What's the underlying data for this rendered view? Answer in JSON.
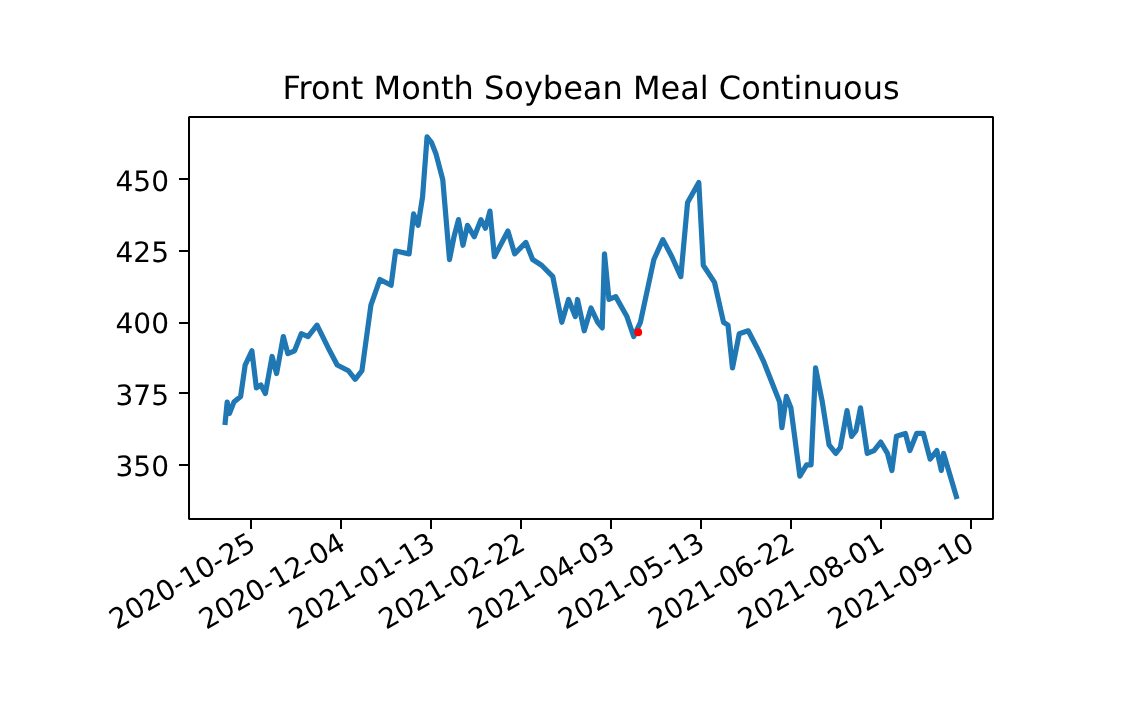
{
  "chart_data": {
    "type": "line",
    "title": "Front Month Soybean Meal Continuous",
    "xlim": [
      "2020-09-27",
      "2021-09-20"
    ],
    "ylim": [
      331,
      472
    ],
    "xticks": [
      "2020-10-25",
      "2020-12-04",
      "2021-01-13",
      "2021-02-22",
      "2021-04-03",
      "2021-05-13",
      "2021-06-22",
      "2021-08-01",
      "2021-09-10"
    ],
    "yticks": [
      350,
      375,
      400,
      425,
      450
    ],
    "grid": false,
    "marker": "none",
    "line_style": "solid",
    "series": [
      {
        "color": "#1f77b4",
        "x": [
          "2020-10-13",
          "2020-10-14",
          "2020-10-15",
          "2020-10-17",
          "2020-10-20",
          "2020-10-22",
          "2020-10-25",
          "2020-10-27",
          "2020-10-29",
          "2020-10-31",
          "2020-11-03",
          "2020-11-05",
          "2020-11-08",
          "2020-11-10",
          "2020-11-13",
          "2020-11-16",
          "2020-11-19",
          "2020-11-23",
          "2020-11-28",
          "2020-12-02",
          "2020-12-07",
          "2020-12-10",
          "2020-12-13",
          "2020-12-17",
          "2020-12-21",
          "2020-12-26",
          "2020-12-28",
          "2021-01-03",
          "2021-01-05",
          "2021-01-07",
          "2021-01-09",
          "2021-01-11",
          "2021-01-13",
          "2021-01-15",
          "2021-01-18",
          "2021-01-21",
          "2021-01-23",
          "2021-01-25",
          "2021-01-27",
          "2021-01-29",
          "2021-02-01",
          "2021-02-04",
          "2021-02-06",
          "2021-02-08",
          "2021-02-10",
          "2021-02-12",
          "2021-02-16",
          "2021-02-19",
          "2021-02-24",
          "2021-02-27",
          "2021-03-03",
          "2021-03-08",
          "2021-03-12",
          "2021-03-15",
          "2021-03-18",
          "2021-03-19",
          "2021-03-22",
          "2021-03-25",
          "2021-03-28",
          "2021-03-30",
          "2021-03-31",
          "2021-04-02",
          "2021-04-05",
          "2021-04-10",
          "2021-04-13",
          "2021-04-16",
          "2021-04-22",
          "2021-04-26",
          "2021-04-30",
          "2021-05-04",
          "2021-05-07",
          "2021-05-12",
          "2021-05-14",
          "2021-05-19",
          "2021-05-23",
          "2021-05-25",
          "2021-05-27",
          "2021-05-30",
          "2021-06-03",
          "2021-06-07",
          "2021-06-10",
          "2021-06-14",
          "2021-06-17",
          "2021-06-18",
          "2021-06-20",
          "2021-06-22",
          "2021-06-26",
          "2021-06-29",
          "2021-07-01",
          "2021-07-03",
          "2021-07-06",
          "2021-07-09",
          "2021-07-12",
          "2021-07-14",
          "2021-07-17",
          "2021-07-19",
          "2021-07-21",
          "2021-07-23",
          "2021-07-26",
          "2021-07-29",
          "2021-08-01",
          "2021-08-04",
          "2021-08-06",
          "2021-08-08",
          "2021-08-12",
          "2021-08-14",
          "2021-08-17",
          "2021-08-20",
          "2021-08-23",
          "2021-08-26",
          "2021-08-28",
          "2021-08-29",
          "2021-09-04"
        ],
        "values": [
          364,
          372,
          368,
          372,
          374,
          385,
          390,
          377,
          378,
          375,
          388,
          382,
          395,
          389,
          390,
          396,
          395,
          399,
          391,
          385,
          383,
          380,
          383,
          406,
          415,
          413,
          425,
          424,
          438,
          434,
          444,
          465,
          463,
          459,
          450,
          422,
          430,
          436,
          427,
          434,
          430,
          436,
          433,
          439,
          423,
          426,
          432,
          424,
          428,
          422,
          420,
          416,
          400,
          408,
          402,
          408,
          397,
          405,
          400,
          398,
          424,
          408,
          409,
          402,
          395,
          400,
          422,
          429,
          423,
          416,
          442,
          449,
          420,
          414,
          400,
          399,
          384,
          396,
          397,
          391,
          386,
          378,
          372,
          363,
          374,
          370,
          346,
          350,
          350,
          384,
          372,
          357,
          354,
          356,
          369,
          360,
          362,
          370,
          354,
          355,
          358,
          354,
          348,
          360,
          361,
          355,
          361,
          361,
          352,
          355,
          348,
          354,
          338
        ]
      },
      {
        "type": "scatter",
        "color": "#ff0000",
        "x": [
          "2021-04-15"
        ],
        "values": [
          396.5
        ]
      }
    ]
  }
}
